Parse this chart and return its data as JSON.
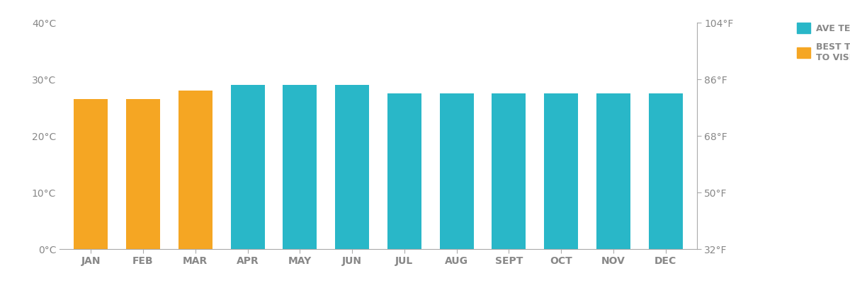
{
  "months": [
    "JAN",
    "FEB",
    "MAR",
    "APR",
    "MAY",
    "JUN",
    "JUL",
    "AUG",
    "SEPT",
    "OCT",
    "NOV",
    "DEC"
  ],
  "temperatures_c": [
    26.5,
    26.5,
    28.0,
    29.0,
    29.0,
    29.0,
    27.5,
    27.5,
    27.5,
    27.5,
    27.5,
    27.5
  ],
  "best_time": [
    true,
    true,
    true,
    false,
    false,
    false,
    false,
    false,
    false,
    false,
    false,
    false
  ],
  "color_ave": "#29B7C8",
  "color_best": "#F5A623",
  "yticks_c": [
    0,
    10,
    20,
    30,
    40
  ],
  "ytick_labels_c": [
    "0°C",
    "10°C",
    "20°C",
    "30°C",
    "40°C"
  ],
  "ytick_labels_f": [
    "32°F",
    "50°F",
    "68°F",
    "86°F",
    "104°F"
  ],
  "ylim": [
    0,
    40
  ],
  "legend_ave_label": "AVE TEMP",
  "legend_best_label": "BEST TIME\nTO VISIT",
  "axis_color": "#aaaaaa",
  "text_color": "#888888",
  "background_color": "#ffffff",
  "bar_width": 0.65
}
